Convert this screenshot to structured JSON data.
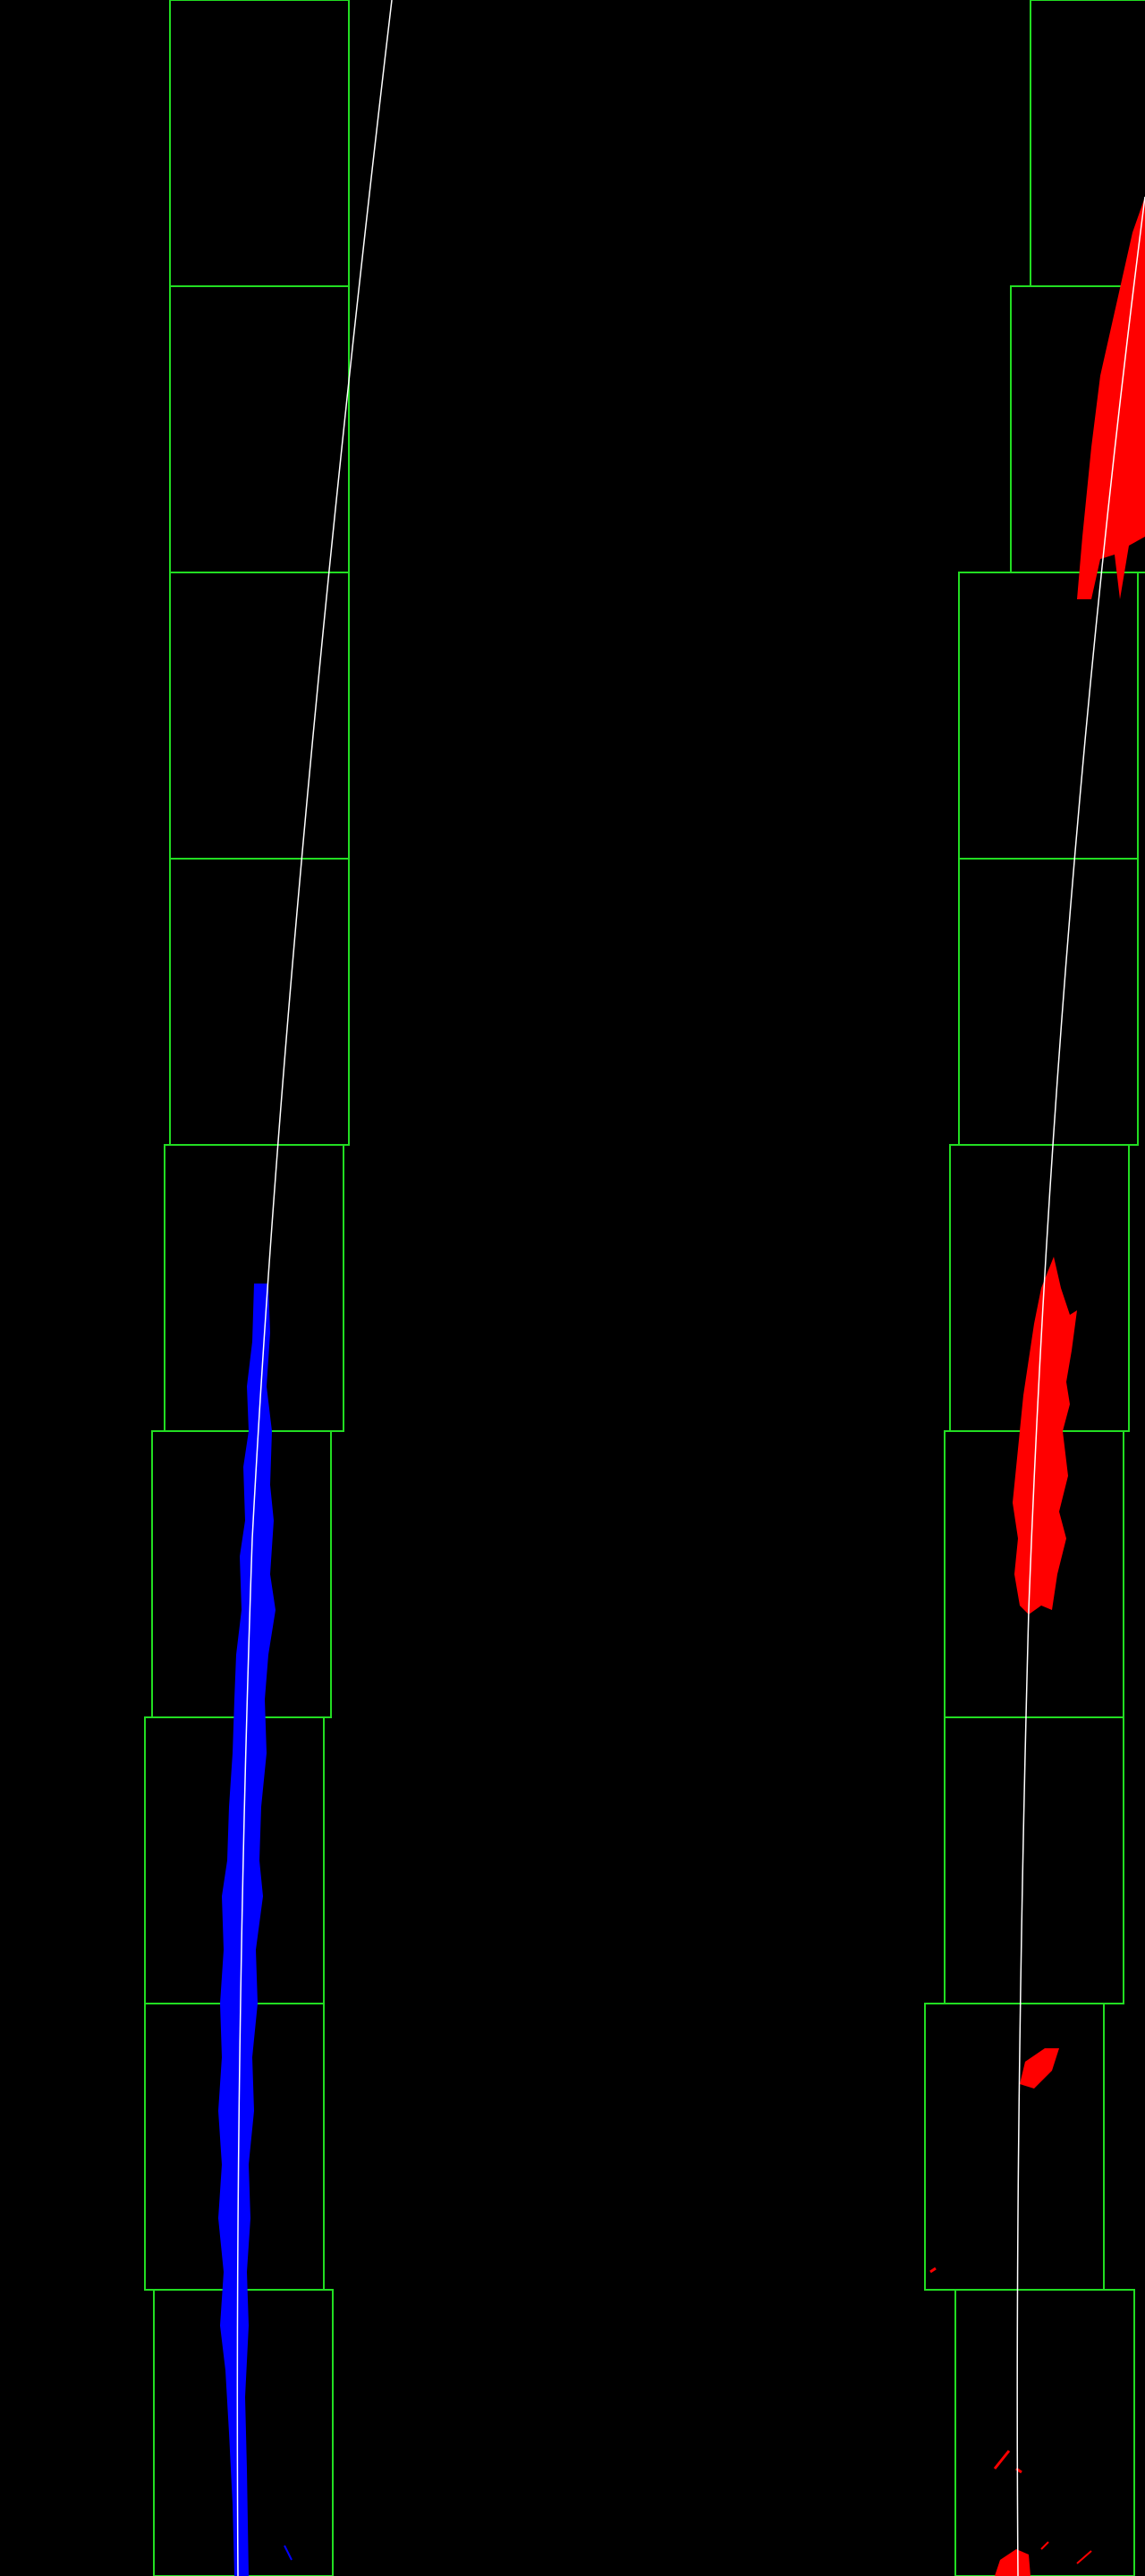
{
  "colors": {
    "background": "#000000",
    "search_window": "#22dd22",
    "left_lane_pixels": "#0000ff",
    "right_lane_pixels": "#ff0000",
    "fit_curve": "#ffffff"
  },
  "lanes": {
    "left": {
      "name": "left-lane",
      "window_count": 9
    },
    "right": {
      "name": "right-lane",
      "window_count": 9
    }
  }
}
